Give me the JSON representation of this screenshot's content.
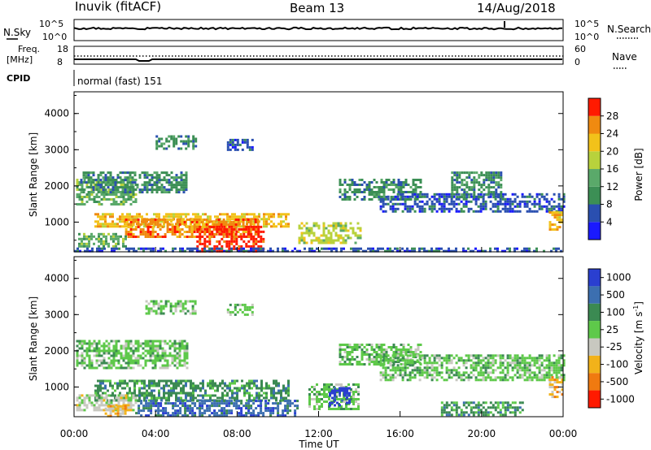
{
  "header": {
    "station": "Inuvik (fitACF)",
    "beam": "Beam 13",
    "date": "14/Aug/2018"
  },
  "top_panels": {
    "nsky_label": "N.Sky",
    "nsearch_label": "N.Search",
    "noise_ticks_left": [
      "10^5",
      "10^0"
    ],
    "noise_ticks_right": [
      "10^5",
      "10^0"
    ],
    "freq_label_1": "Freq.",
    "freq_label_2": "[MHz]",
    "freq_ticks": [
      "18",
      "8"
    ],
    "nave_ticks": [
      "60",
      "0"
    ],
    "nave_label": "Nave",
    "cpid_label": "CPID",
    "cpid_value": "normal (fast) 151"
  },
  "colors": {
    "power_scale": [
      "#1a1aff",
      "#2a4fb0",
      "#3c8f55",
      "#5aa96a",
      "#b8d23c",
      "#f2c21a",
      "#f08a10",
      "#ff1a00"
    ],
    "velocity_scale": [
      "#2a3fd0",
      "#3c6fb0",
      "#3b8a52",
      "#5ec94a",
      "#c8c8c0",
      "#f2b21a",
      "#f07a10",
      "#ff1a00"
    ]
  },
  "chart_data": [
    {
      "type": "heatmap",
      "panel": "power",
      "ylabel": "Slant Range [km]",
      "yticks": [
        "1000",
        "2000",
        "3000",
        "4000"
      ],
      "ylim": [
        180,
        4600
      ],
      "xlim_hours": [
        0,
        24
      ],
      "colorbar_label": "Power [dB]",
      "colorbar_ticks": [
        "4",
        "8",
        "12",
        "16",
        "20",
        "24",
        "28"
      ],
      "regions": [
        {
          "t0": 0.1,
          "t1": 3.0,
          "r0": 1500,
          "r1": 2200,
          "level": 4
        },
        {
          "t0": 0.3,
          "t1": 5.5,
          "r0": 1800,
          "r1": 2400,
          "level": 3
        },
        {
          "t0": 1.0,
          "t1": 10.5,
          "r0": 850,
          "r1": 1250,
          "level": 6
        },
        {
          "t0": 2.5,
          "t1": 9.0,
          "r0": 600,
          "r1": 1100,
          "level": 7
        },
        {
          "t0": 6.0,
          "t1": 9.3,
          "r0": 180,
          "r1": 900,
          "level": 8
        },
        {
          "t0": 4.0,
          "t1": 6.0,
          "r0": 3000,
          "r1": 3400,
          "level": 3
        },
        {
          "t0": 7.5,
          "t1": 8.8,
          "r0": 3000,
          "r1": 3300,
          "level": 2
        },
        {
          "t0": 0.2,
          "t1": 2.5,
          "r0": 300,
          "r1": 700,
          "level": 4
        },
        {
          "t0": 13.0,
          "t1": 17.0,
          "r0": 1600,
          "r1": 2200,
          "level": 3
        },
        {
          "t0": 15.0,
          "t1": 24.0,
          "r0": 1300,
          "r1": 1800,
          "level": 2
        },
        {
          "t0": 18.5,
          "t1": 21.0,
          "r0": 1700,
          "r1": 2400,
          "level": 3
        },
        {
          "t0": 11.0,
          "t1": 14.0,
          "r0": 400,
          "r1": 1000,
          "level": 5
        },
        {
          "t0": 0,
          "t1": 24.0,
          "r0": 180,
          "r1": 300,
          "level": 2
        },
        {
          "t0": 23.3,
          "t1": 24.0,
          "r0": 800,
          "r1": 1300,
          "level": 6
        }
      ]
    },
    {
      "type": "heatmap",
      "panel": "velocity",
      "ylabel": "Slant Range [km]",
      "yticks": [
        "1000",
        "2000",
        "3000",
        "4000"
      ],
      "ylim": [
        180,
        4600
      ],
      "xlim_hours": [
        0,
        24
      ],
      "xticks": [
        "00:00",
        "04:00",
        "08:00",
        "12:00",
        "16:00",
        "20:00",
        "00:00"
      ],
      "xlabel": "Time UT",
      "colorbar_label": "Velocity [m s",
      "colorbar_label_sup": "-1",
      "colorbar_label_end": "]",
      "colorbar_ticks": [
        "1000",
        "500",
        "100",
        "25",
        "-25",
        "-100",
        "-500",
        "-1000"
      ],
      "regions": [
        {
          "t0": 0.1,
          "t1": 5.5,
          "r0": 1500,
          "r1": 2300,
          "level": 4
        },
        {
          "t0": 3.5,
          "t1": 6.0,
          "r0": 3000,
          "r1": 3400,
          "level": 4
        },
        {
          "t0": 7.5,
          "t1": 8.8,
          "r0": 3000,
          "r1": 3300,
          "level": 4
        },
        {
          "t0": 1.0,
          "t1": 10.5,
          "r0": 650,
          "r1": 1200,
          "level": 3
        },
        {
          "t0": 3.0,
          "t1": 11.0,
          "r0": 180,
          "r1": 650,
          "level": 2
        },
        {
          "t0": 0.1,
          "t1": 3.0,
          "r0": 350,
          "r1": 800,
          "level": 5
        },
        {
          "t0": 1.5,
          "t1": 2.5,
          "r0": 200,
          "r1": 500,
          "level": 6
        },
        {
          "t0": 13.0,
          "t1": 17.0,
          "r0": 1600,
          "r1": 2200,
          "level": 4
        },
        {
          "t0": 15.0,
          "t1": 24.0,
          "r0": 1200,
          "r1": 1900,
          "level": 4
        },
        {
          "t0": 11.5,
          "t1": 14.0,
          "r0": 400,
          "r1": 1100,
          "level": 4
        },
        {
          "t0": 12.5,
          "t1": 13.5,
          "r0": 500,
          "r1": 1000,
          "level": 1
        },
        {
          "t0": 23.3,
          "t1": 24.0,
          "r0": 700,
          "r1": 1300,
          "level": 6
        },
        {
          "t0": 18.0,
          "t1": 22.0,
          "r0": 200,
          "r1": 600,
          "level": 3
        }
      ]
    }
  ]
}
